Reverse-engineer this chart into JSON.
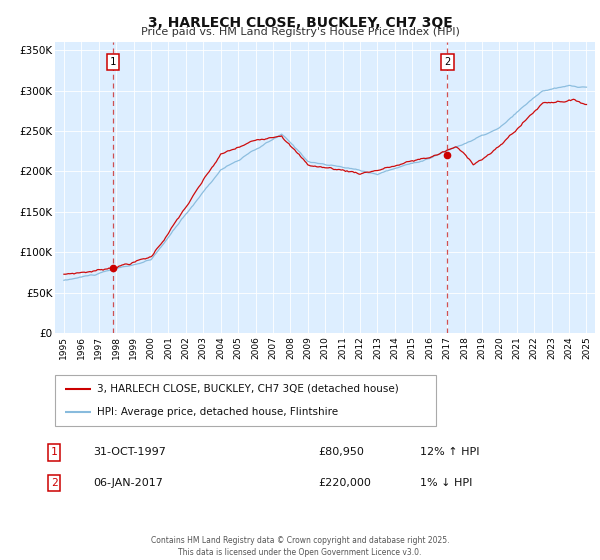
{
  "title": "3, HARLECH CLOSE, BUCKLEY, CH7 3QE",
  "subtitle": "Price paid vs. HM Land Registry's House Price Index (HPI)",
  "bg_color": "#ffffff",
  "plot_bg_color": "#ddeeff",
  "grid_color": "#ffffff",
  "line1_color": "#cc0000",
  "line2_color": "#88bbdd",
  "vline_color": "#cc3333",
  "ylim": [
    0,
    360000
  ],
  "yticks": [
    0,
    50000,
    100000,
    150000,
    200000,
    250000,
    300000,
    350000
  ],
  "ytick_labels": [
    "£0",
    "£50K",
    "£100K",
    "£150K",
    "£200K",
    "£250K",
    "£300K",
    "£350K"
  ],
  "xlim_start": 1994.5,
  "xlim_end": 2025.5,
  "xtick_years": [
    1995,
    1996,
    1997,
    1998,
    1999,
    2000,
    2001,
    2002,
    2003,
    2004,
    2005,
    2006,
    2007,
    2008,
    2009,
    2010,
    2011,
    2012,
    2013,
    2014,
    2015,
    2016,
    2017,
    2018,
    2019,
    2020,
    2021,
    2022,
    2023,
    2024,
    2025
  ],
  "sale1_x": 1997.83,
  "sale1_y": 80950,
  "sale2_x": 2017.02,
  "sale2_y": 220000,
  "legend_label1": "3, HARLECH CLOSE, BUCKLEY, CH7 3QE (detached house)",
  "legend_label2": "HPI: Average price, detached house, Flintshire",
  "table_row1": [
    "1",
    "31-OCT-1997",
    "£80,950",
    "12% ↑ HPI"
  ],
  "table_row2": [
    "2",
    "06-JAN-2017",
    "£220,000",
    "1% ↓ HPI"
  ],
  "footer": "Contains HM Land Registry data © Crown copyright and database right 2025.\nThis data is licensed under the Open Government Licence v3.0."
}
